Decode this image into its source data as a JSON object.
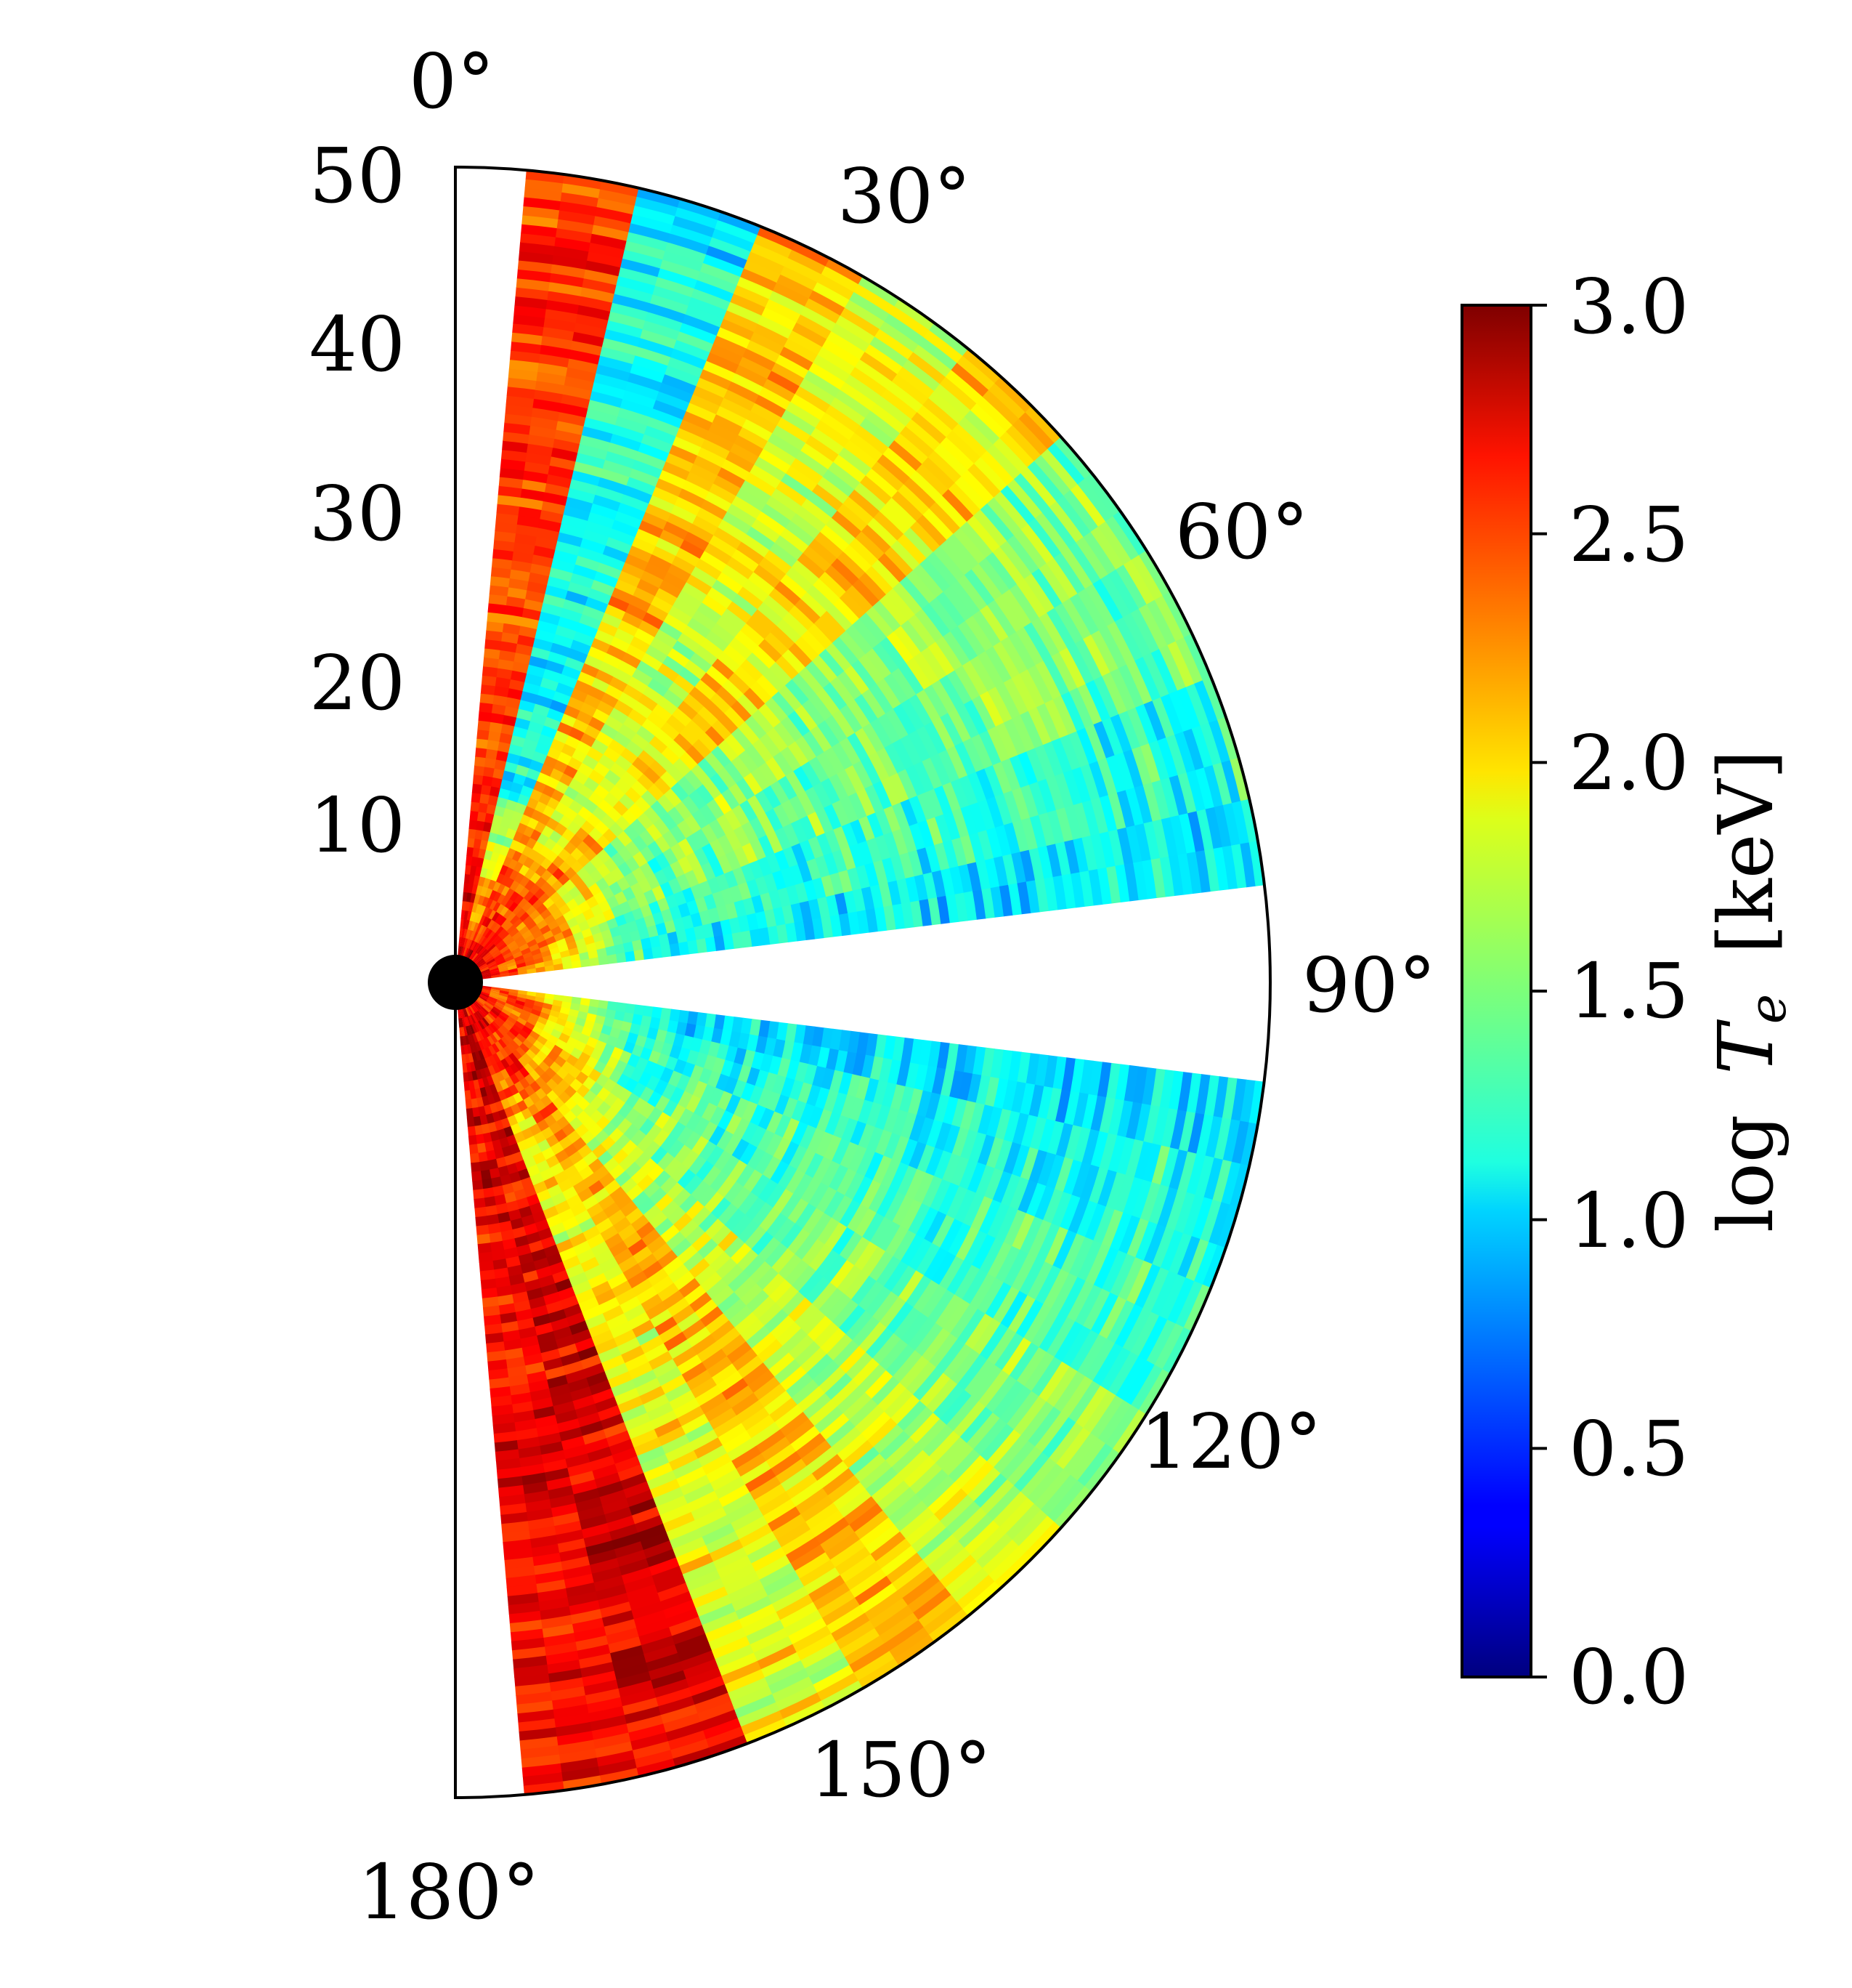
{
  "chart_data": {
    "type": "heatmap",
    "subtype": "polar-wedge",
    "radial_axis": {
      "range": [
        0,
        50
      ],
      "tick_labels": [
        "10",
        "20",
        "30",
        "40",
        "50"
      ],
      "tick_values": [
        10,
        20,
        30,
        40,
        50
      ]
    },
    "angular_axis": {
      "range_deg": [
        0,
        180
      ],
      "tick_labels": [
        "0°",
        "30°",
        "60°",
        "90°",
        "120°",
        "150°",
        "180°"
      ],
      "tick_values": [
        0,
        30,
        60,
        90,
        120,
        150,
        180
      ]
    },
    "colorbar": {
      "label": "log T_e [keV]",
      "label_main": "log",
      "label_symbol": "T",
      "label_subscript": "e",
      "label_units": "[keV]",
      "range": [
        0.0,
        3.0
      ],
      "tick_labels": [
        "0.0",
        "0.5",
        "1.0",
        "1.5",
        "2.0",
        "2.5",
        "3.0"
      ],
      "tick_values": [
        0.0,
        0.5,
        1.0,
        1.5,
        2.0,
        2.5,
        3.0
      ],
      "colormap": "jet"
    },
    "angular_bins": [
      {
        "theta": [
          5,
          13
        ],
        "base": 2.45
      },
      {
        "theta": [
          13,
          22
        ],
        "base": 1.15
      },
      {
        "theta": [
          22,
          30
        ],
        "base": 2.05
      },
      {
        "theta": [
          30,
          39
        ],
        "base": 1.75
      },
      {
        "theta": [
          39,
          48
        ],
        "base": 1.95
      },
      {
        "theta": [
          48,
          58
        ],
        "base": 1.55
      },
      {
        "theta": [
          58,
          68
        ],
        "base": 1.45
      },
      {
        "theta": [
          68,
          77
        ],
        "base": 1.25
      },
      {
        "theta": [
          77,
          83
        ],
        "base": 1.1
      },
      {
        "theta": [
          97,
          103
        ],
        "base": 1.05
      },
      {
        "theta": [
          103,
          112
        ],
        "base": 1.2
      },
      {
        "theta": [
          112,
          122
        ],
        "base": 1.35
      },
      {
        "theta": [
          122,
          132
        ],
        "base": 1.5
      },
      {
        "theta": [
          132,
          141
        ],
        "base": 1.7
      },
      {
        "theta": [
          141,
          150
        ],
        "base": 2.05
      },
      {
        "theta": [
          150,
          159
        ],
        "base": 1.85
      },
      {
        "theta": [
          159,
          167
        ],
        "base": 2.7
      },
      {
        "theta": [
          167,
          175
        ],
        "base": 2.65
      }
    ],
    "empty_regions": [
      {
        "theta": [
          0,
          5
        ]
      },
      {
        "theta": [
          83,
          97
        ]
      },
      {
        "theta": [
          175,
          180
        ]
      }
    ],
    "core_value": 2.8,
    "central_marker_color": "#000000",
    "grid": false
  }
}
